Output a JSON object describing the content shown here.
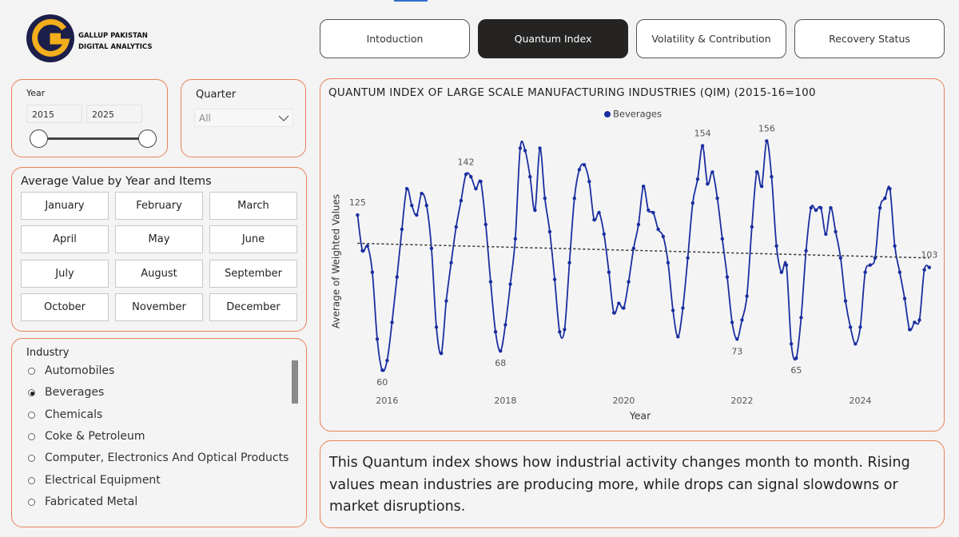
{
  "header": {
    "logo_text": [
      "GALLUP PAKISTAN",
      "DIGITAL ANALYTICS"
    ]
  },
  "tabs": {
    "items": [
      "Intoduction",
      "Quantum Index",
      "Volatility & Contribution",
      "Recovery Status"
    ],
    "active": 1
  },
  "year_filter": {
    "label": "Year",
    "from": 2015,
    "to": 2025
  },
  "quarter_filter": {
    "label": "Quarter",
    "value": "All"
  },
  "months_panel": {
    "title": "Average Value by Year and Items",
    "months": [
      "January",
      "February",
      "March",
      "April",
      "May",
      "June",
      "July",
      "August",
      "September",
      "October",
      "November",
      "December"
    ]
  },
  "industry_panel": {
    "title": "Industry",
    "items": [
      "Automobiles",
      "Beverages",
      "Chemicals",
      "Coke & Petroleum",
      "Computer, Electronics And Optical Products",
      "Electrical Equipment",
      "Fabricated Metal"
    ],
    "selected": 1
  },
  "chart_data": {
    "type": "line",
    "title": "QUANTUM INDEX OF LARGE SCALE MANUFACTURING INDUSTRIES (QIM) (2015-16=100",
    "xlabel": "Year",
    "ylabel": "Average of Weighted Values",
    "legend": "top",
    "trendline": true,
    "grid": false,
    "x": [
      2015.5,
      2015.583,
      2015.667,
      2015.75,
      2015.833,
      2015.917,
      2016,
      2016.083,
      2016.167,
      2016.25,
      2016.333,
      2016.417,
      2016.5,
      2016.583,
      2016.667,
      2016.75,
      2016.833,
      2016.917,
      2017,
      2017.083,
      2017.167,
      2017.25,
      2017.333,
      2017.417,
      2017.5,
      2017.583,
      2017.667,
      2017.75,
      2017.833,
      2017.917,
      2018,
      2018.083,
      2018.167,
      2018.25,
      2018.333,
      2018.417,
      2018.5,
      2018.583,
      2018.667,
      2018.75,
      2018.833,
      2018.917,
      2019,
      2019.083,
      2019.167,
      2019.25,
      2019.333,
      2019.417,
      2019.5,
      2019.583,
      2019.667,
      2019.75,
      2019.833,
      2019.917,
      2020,
      2020.083,
      2020.167,
      2020.25,
      2020.333,
      2020.417,
      2020.5,
      2020.583,
      2020.667,
      2020.75,
      2020.833,
      2020.917,
      2021,
      2021.083,
      2021.167,
      2021.25,
      2021.333,
      2021.417,
      2021.5,
      2021.583,
      2021.667,
      2021.75,
      2021.833,
      2021.917,
      2022,
      2022.083,
      2022.167,
      2022.25,
      2022.333,
      2022.417,
      2022.5,
      2022.583,
      2022.667,
      2022.75,
      2022.833,
      2022.917,
      2023,
      2023.083,
      2023.167,
      2023.25,
      2023.333,
      2023.417,
      2023.5,
      2023.583,
      2023.667,
      2023.75,
      2023.833,
      2023.917,
      2024,
      2024.083,
      2024.167,
      2024.25,
      2024.333,
      2024.417,
      2024.5,
      2024.583,
      2024.667,
      2024.75,
      2024.833,
      2024.917,
      2025,
      2025.083,
      2025.167
    ],
    "series": [
      {
        "name": "Beverages",
        "color": "#1a2ea0",
        "values": [
          125,
          110,
          112,
          101,
          73,
          60,
          64,
          80,
          99,
          119,
          136,
          129,
          125,
          134,
          129,
          111,
          78,
          67,
          89,
          105,
          120,
          131,
          142,
          141,
          136,
          139,
          121,
          97,
          76,
          68,
          79,
          96,
          115,
          153,
          152,
          141,
          127,
          153,
          132,
          118,
          98,
          76,
          77,
          105,
          132,
          144,
          146,
          139,
          123,
          126,
          117,
          101,
          84,
          88,
          86,
          97,
          111,
          121,
          137,
          127,
          126,
          119,
          116,
          105,
          85,
          74,
          86,
          107,
          130,
          140,
          154,
          138,
          143,
          132,
          115,
          99,
          80,
          73,
          81,
          91,
          120,
          143,
          137,
          156,
          141,
          112,
          101,
          104,
          71,
          65,
          82,
          110,
          128,
          127,
          128,
          117,
          128,
          118,
          107,
          89,
          78,
          71,
          78,
          101,
          104,
          107,
          128,
          132,
          136,
          112,
          101,
          90,
          77,
          80,
          81,
          102,
          103
        ]
      }
    ],
    "xlim": [
      2015.4,
      2025.25
    ],
    "xticks": [
      2016,
      2018,
      2020,
      2022,
      2024
    ],
    "ylim": [
      50,
      160
    ]
  },
  "description": "This Quantum index shows how industrial activity changes month to month. Rising values mean industries are producing more, while drops can signal slowdowns or market disruptions."
}
